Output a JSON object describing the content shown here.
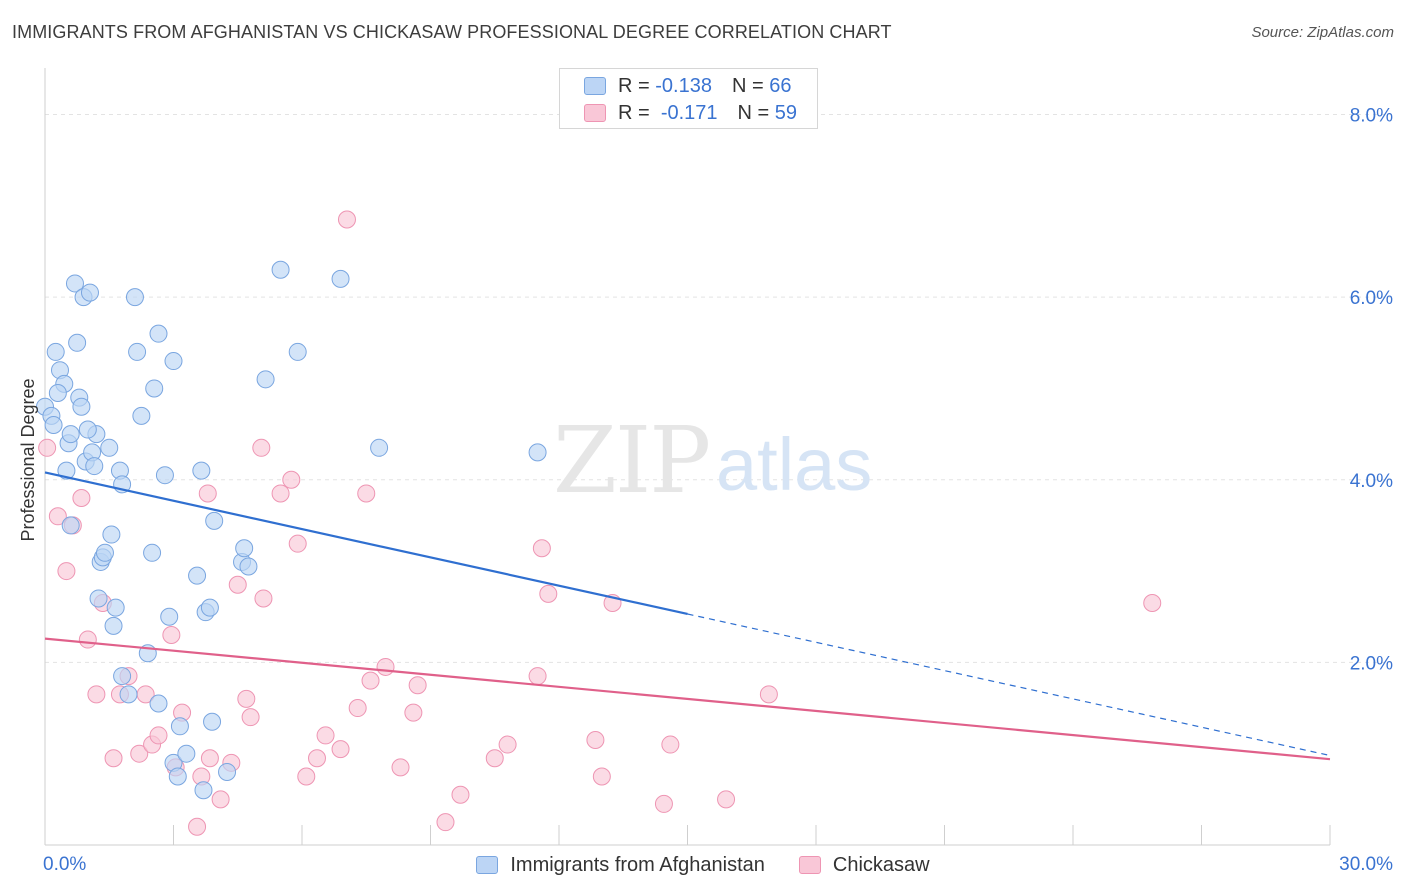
{
  "title": "IMMIGRANTS FROM AFGHANISTAN VS CHICKASAW PROFESSIONAL DEGREE CORRELATION CHART",
  "source": "Source: ZipAtlas.com",
  "watermark": {
    "zip": "ZIP",
    "atlas": "atlas"
  },
  "stats": [
    {
      "r_label": "R =",
      "r_value": "-0.138",
      "n_label": "N =",
      "n_value": "66"
    },
    {
      "r_label": "R =",
      "r_value": "-0.171",
      "n_label": "N =",
      "n_value": "59"
    }
  ],
  "legend": [
    {
      "label": "Immigrants from Afghanistan"
    },
    {
      "label": "Chickasaw"
    }
  ],
  "colors": {
    "blue_fill": "#bcd5f5",
    "blue_stroke": "#7aa6e0",
    "blue_line": "#2f6fd0",
    "pink_fill": "#f9c7d7",
    "pink_stroke": "#ee95b3",
    "pink_line": "#e0608a",
    "axis_label": "#3a73d1",
    "grid": "#e3e3e3"
  },
  "chart_data": {
    "type": "scatter",
    "title": "IMMIGRANTS FROM AFGHANISTAN VS CHICKASAW PROFESSIONAL DEGREE CORRELATION CHART",
    "xlabel": "",
    "ylabel": "Professional Degree",
    "xlim": [
      0,
      30
    ],
    "ylim": [
      0,
      8.4
    ],
    "x_tick_labels": [
      "0.0%",
      "30.0%"
    ],
    "y_ticks": [
      2,
      4,
      6,
      8
    ],
    "y_tick_labels": [
      "2.0%",
      "4.0%",
      "6.0%",
      "8.0%"
    ],
    "grid": true,
    "legend_position": "bottom",
    "series": [
      {
        "name": "Immigrants from Afghanistan",
        "color": "#bcd5f5",
        "points": [
          [
            0.0,
            4.8
          ],
          [
            0.15,
            4.7
          ],
          [
            0.2,
            4.6
          ],
          [
            0.25,
            5.4
          ],
          [
            0.35,
            5.2
          ],
          [
            0.45,
            5.05
          ],
          [
            0.5,
            4.1
          ],
          [
            0.55,
            4.4
          ],
          [
            0.6,
            4.5
          ],
          [
            0.7,
            6.15
          ],
          [
            0.75,
            5.5
          ],
          [
            0.8,
            4.9
          ],
          [
            0.85,
            4.8
          ],
          [
            0.9,
            6.0
          ],
          [
            0.95,
            4.2
          ],
          [
            1.05,
            6.05
          ],
          [
            1.1,
            4.3
          ],
          [
            1.15,
            4.15
          ],
          [
            1.2,
            4.5
          ],
          [
            1.3,
            3.1
          ],
          [
            1.35,
            3.15
          ],
          [
            1.4,
            3.2
          ],
          [
            1.5,
            4.35
          ],
          [
            1.55,
            3.4
          ],
          [
            1.6,
            2.4
          ],
          [
            1.65,
            2.6
          ],
          [
            1.75,
            4.1
          ],
          [
            1.8,
            3.95
          ],
          [
            2.1,
            6.0
          ],
          [
            2.15,
            5.4
          ],
          [
            2.25,
            4.7
          ],
          [
            2.4,
            2.1
          ],
          [
            2.5,
            3.2
          ],
          [
            2.55,
            5.0
          ],
          [
            2.65,
            5.6
          ],
          [
            2.8,
            4.05
          ],
          [
            2.9,
            2.5
          ],
          [
            3.0,
            5.3
          ],
          [
            3.0,
            0.9
          ],
          [
            3.1,
            0.75
          ],
          [
            3.15,
            1.3
          ],
          [
            3.3,
            1.0
          ],
          [
            3.55,
            2.95
          ],
          [
            3.65,
            4.1
          ],
          [
            3.7,
            0.6
          ],
          [
            3.75,
            2.55
          ],
          [
            3.85,
            2.6
          ],
          [
            3.9,
            1.35
          ],
          [
            3.95,
            3.55
          ],
          [
            1.25,
            2.7
          ],
          [
            1.8,
            1.85
          ],
          [
            1.95,
            1.65
          ],
          [
            2.65,
            1.55
          ],
          [
            4.25,
            0.8
          ],
          [
            4.6,
            3.1
          ],
          [
            4.65,
            3.25
          ],
          [
            4.75,
            3.05
          ],
          [
            5.15,
            5.1
          ],
          [
            5.5,
            6.3
          ],
          [
            5.9,
            5.4
          ],
          [
            6.9,
            6.2
          ],
          [
            7.8,
            4.35
          ],
          [
            11.5,
            4.3
          ],
          [
            0.3,
            4.95
          ],
          [
            0.6,
            3.5
          ],
          [
            1.0,
            4.55
          ]
        ]
      },
      {
        "name": "Chickasaw",
        "color": "#f9c7d7",
        "points": [
          [
            0.05,
            4.35
          ],
          [
            0.3,
            3.6
          ],
          [
            0.5,
            3.0
          ],
          [
            0.65,
            3.5
          ],
          [
            0.85,
            3.8
          ],
          [
            1.0,
            2.25
          ],
          [
            1.2,
            1.65
          ],
          [
            1.35,
            2.65
          ],
          [
            1.6,
            0.95
          ],
          [
            1.75,
            1.65
          ],
          [
            1.95,
            1.85
          ],
          [
            2.2,
            1.0
          ],
          [
            2.35,
            1.65
          ],
          [
            2.5,
            1.1
          ],
          [
            2.65,
            1.2
          ],
          [
            2.95,
            2.3
          ],
          [
            3.05,
            0.85
          ],
          [
            3.2,
            1.45
          ],
          [
            3.55,
            0.2
          ],
          [
            3.65,
            0.75
          ],
          [
            3.8,
            3.85
          ],
          [
            3.85,
            0.95
          ],
          [
            4.1,
            0.5
          ],
          [
            4.35,
            0.9
          ],
          [
            4.5,
            2.85
          ],
          [
            4.7,
            1.6
          ],
          [
            4.8,
            1.4
          ],
          [
            5.05,
            4.35
          ],
          [
            5.1,
            2.7
          ],
          [
            5.5,
            3.85
          ],
          [
            5.75,
            4.0
          ],
          [
            5.9,
            3.3
          ],
          [
            6.1,
            0.75
          ],
          [
            6.35,
            0.95
          ],
          [
            6.55,
            1.2
          ],
          [
            6.9,
            1.05
          ],
          [
            7.05,
            6.85
          ],
          [
            7.3,
            1.5
          ],
          [
            7.5,
            3.85
          ],
          [
            7.6,
            1.8
          ],
          [
            7.95,
            1.95
          ],
          [
            8.3,
            0.85
          ],
          [
            8.6,
            1.45
          ],
          [
            8.7,
            1.75
          ],
          [
            9.35,
            0.25
          ],
          [
            9.7,
            0.55
          ],
          [
            10.5,
            0.95
          ],
          [
            10.8,
            1.1
          ],
          [
            11.5,
            1.85
          ],
          [
            11.6,
            3.25
          ],
          [
            11.75,
            2.75
          ],
          [
            12.85,
            1.15
          ],
          [
            13.0,
            0.75
          ],
          [
            13.25,
            2.65
          ],
          [
            14.45,
            0.45
          ],
          [
            14.6,
            1.1
          ],
          [
            15.9,
            0.5
          ],
          [
            16.9,
            1.65
          ],
          [
            25.85,
            2.65
          ]
        ]
      }
    ],
    "trend_lines": [
      {
        "series": "Immigrants from Afghanistan",
        "x0": 0,
        "y0": 4.08,
        "x1": 30,
        "y1": 0.98,
        "solid_until_x": 15.0
      },
      {
        "series": "Chickasaw",
        "x0": 0,
        "y0": 2.26,
        "x1": 30,
        "y1": 0.94
      }
    ]
  }
}
